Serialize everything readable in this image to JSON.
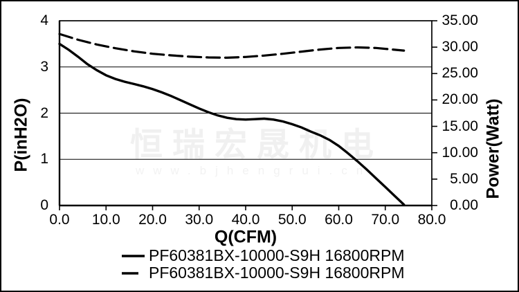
{
  "watermark": {
    "cjk": "恒瑞宏晟机电",
    "url": "www.bjhengrui.cn"
  },
  "colors": {
    "ink": "#000000",
    "background": "#ffffff",
    "watermark_cjk": "#f0f0f0",
    "watermark_url": "#f2f2f2"
  },
  "chart_data": {
    "type": "line",
    "title": "",
    "xlabel": "Q(CFM)",
    "ylabel_left": "P(inH2O)",
    "ylabel_right": "Power(Watt)",
    "xlim": [
      0,
      80
    ],
    "ylim_left": [
      0,
      4
    ],
    "ylim_right": [
      0,
      35
    ],
    "x_ticks": [
      "0.0",
      "10.0",
      "20.0",
      "30.0",
      "40.0",
      "50.0",
      "60.0",
      "70.0",
      "80.0"
    ],
    "y_ticks_left": [
      "4",
      "3",
      "2",
      "1",
      "0"
    ],
    "y_ticks_right": [
      "35.00",
      "30.00",
      "25.00",
      "20.00",
      "15.00",
      "10.00",
      "5.00",
      "0.00"
    ],
    "gridlines_left_values": [
      1,
      2,
      3
    ],
    "grid": "horizontal-only",
    "legend_position": "bottom",
    "series": [
      {
        "name": "PF60381BX-10000-S9H 16800RPM",
        "axis": "left",
        "style": "solid",
        "points": [
          [
            0,
            3.5
          ],
          [
            2,
            3.37
          ],
          [
            4,
            3.22
          ],
          [
            6,
            3.06
          ],
          [
            8,
            2.93
          ],
          [
            10,
            2.82
          ],
          [
            12,
            2.74
          ],
          [
            14,
            2.68
          ],
          [
            16,
            2.63
          ],
          [
            18,
            2.58
          ],
          [
            20,
            2.52
          ],
          [
            22,
            2.45
          ],
          [
            24,
            2.37
          ],
          [
            26,
            2.28
          ],
          [
            28,
            2.19
          ],
          [
            30,
            2.1
          ],
          [
            32,
            2.02
          ],
          [
            34,
            1.95
          ],
          [
            36,
            1.9
          ],
          [
            38,
            1.87
          ],
          [
            40,
            1.86
          ],
          [
            42,
            1.87
          ],
          [
            44,
            1.88
          ],
          [
            46,
            1.86
          ],
          [
            48,
            1.82
          ],
          [
            50,
            1.76
          ],
          [
            52,
            1.69
          ],
          [
            54,
            1.6
          ],
          [
            56,
            1.52
          ],
          [
            58,
            1.42
          ],
          [
            60,
            1.29
          ],
          [
            62,
            1.13
          ],
          [
            64,
            0.96
          ],
          [
            66,
            0.78
          ],
          [
            68,
            0.59
          ],
          [
            70,
            0.4
          ],
          [
            72,
            0.21
          ],
          [
            74,
            0.02
          ]
        ]
      },
      {
        "name": "PF60381BX-10000-S9H 16800RPM",
        "axis": "right",
        "style": "dashed",
        "points": [
          [
            0,
            32.5
          ],
          [
            4,
            31.4
          ],
          [
            8,
            30.5
          ],
          [
            12,
            29.8
          ],
          [
            16,
            29.2
          ],
          [
            20,
            28.75
          ],
          [
            24,
            28.45
          ],
          [
            28,
            28.2
          ],
          [
            32,
            28.05
          ],
          [
            36,
            28.0
          ],
          [
            40,
            28.15
          ],
          [
            44,
            28.4
          ],
          [
            48,
            28.75
          ],
          [
            52,
            29.15
          ],
          [
            56,
            29.55
          ],
          [
            60,
            29.85
          ],
          [
            64,
            29.95
          ],
          [
            68,
            29.85
          ],
          [
            71,
            29.6
          ],
          [
            74,
            29.35
          ]
        ]
      }
    ]
  }
}
